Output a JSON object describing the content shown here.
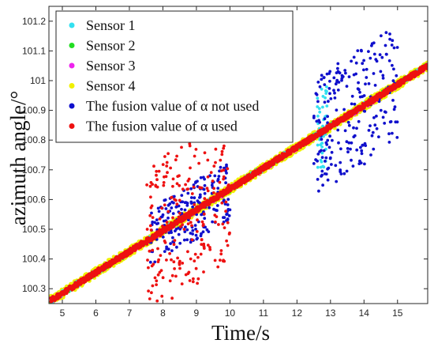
{
  "chart_data": {
    "type": "scatter",
    "xlabel": "Time/s",
    "ylabel": "azimuth angle/°",
    "xlim": [
      4.6,
      15.9
    ],
    "ylim": [
      100.25,
      101.25
    ],
    "xticks": [
      "5",
      "6",
      "7",
      "8",
      "9",
      "10",
      "11",
      "12",
      "13",
      "14",
      "15"
    ],
    "yticks": [
      "100.3",
      "100.4",
      "100.5",
      "100.6",
      "100.7",
      "100.8",
      "100.9",
      "101",
      "101.1",
      "101.2"
    ],
    "legend_position": "top-left",
    "trend": {
      "x_start": 4.65,
      "y_start": 100.26,
      "x_end": 15.9,
      "y_end": 101.05
    },
    "series": [
      {
        "name": "Sensor 1",
        "color": "#33E0F0",
        "summary": "follows trend line; scatters about ±0.15 around x 12.6–12.9"
      },
      {
        "name": "Sensor 2",
        "color": "#22DD22",
        "summary": "follows trend line"
      },
      {
        "name": "Sensor 3",
        "color": "#EE22EE",
        "summary": "follows trend line"
      },
      {
        "name": "Sensor 4",
        "color": "#F0F000",
        "summary": "dense along trend line over full range"
      },
      {
        "name": "The fusion value of α not used",
        "color": "#1010CC",
        "summary": "scatters about ±0.1 for x 7.6–10 and about ±0.2 for x 12.5–15"
      },
      {
        "name": "The fusion value of α used",
        "color": "#EE1111",
        "summary": "along trend line; scatters about ±0.25 for x 7.5–10"
      }
    ],
    "noise_regions": [
      {
        "series": 0,
        "x_range": [
          12.6,
          12.9
        ],
        "spread": 0.15
      },
      {
        "series": 4,
        "x_range": [
          7.6,
          10.0
        ],
        "spread": 0.1
      },
      {
        "series": 4,
        "x_range": [
          12.5,
          15.0
        ],
        "spread": 0.2
      },
      {
        "series": 5,
        "x_range": [
          7.5,
          10.0
        ],
        "spread": 0.25
      }
    ]
  }
}
